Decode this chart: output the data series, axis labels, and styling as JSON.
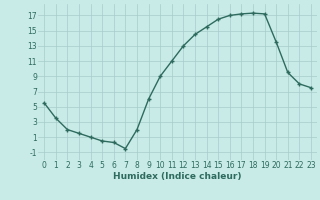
{
  "x": [
    0,
    1,
    2,
    3,
    4,
    5,
    6,
    7,
    8,
    9,
    10,
    11,
    12,
    13,
    14,
    15,
    16,
    17,
    18,
    19,
    20,
    21,
    22,
    23
  ],
  "y": [
    5.5,
    3.5,
    2.0,
    1.5,
    1.0,
    0.5,
    0.3,
    -0.5,
    2.0,
    6.0,
    9.0,
    11.0,
    13.0,
    14.5,
    15.5,
    16.5,
    17.0,
    17.2,
    17.3,
    17.2,
    13.5,
    9.5,
    8.0,
    7.5
  ],
  "xlabel": "Humidex (Indice chaleur)",
  "xlim": [
    -0.5,
    23.5
  ],
  "ylim": [
    -2,
    18.5
  ],
  "yticks": [
    -1,
    1,
    3,
    5,
    7,
    9,
    11,
    13,
    15,
    17
  ],
  "xticks": [
    0,
    1,
    2,
    3,
    4,
    5,
    6,
    7,
    8,
    9,
    10,
    11,
    12,
    13,
    14,
    15,
    16,
    17,
    18,
    19,
    20,
    21,
    22,
    23
  ],
  "line_color": "#2e6b5e",
  "marker": "+",
  "marker_size": 3.5,
  "bg_color": "#c8ebe8",
  "grid_color": "#a8ccc9",
  "font_color": "#2e6b5e",
  "xlabel_fontsize": 6.5,
  "tick_fontsize": 5.5,
  "line_width": 1.0
}
